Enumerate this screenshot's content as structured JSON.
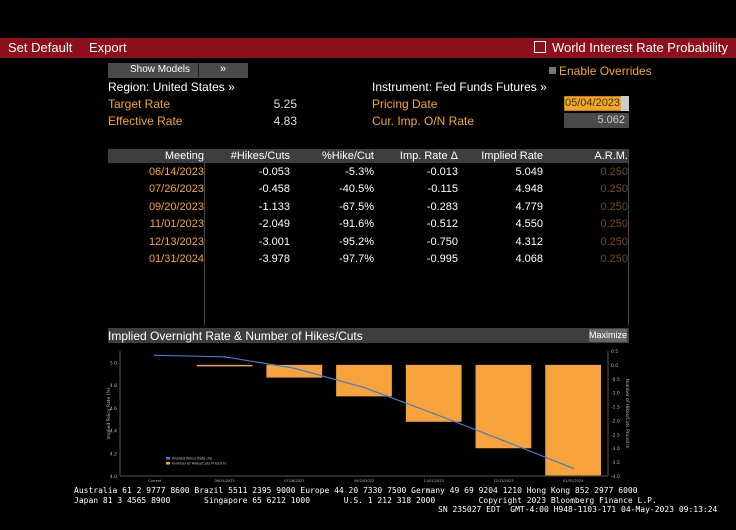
{
  "toolbar": {
    "set_default": "Set Default",
    "export": "Export",
    "title": "World Interest Rate Probability"
  },
  "controls": {
    "show_models": "Show Models",
    "show_models_arrow": "»",
    "enable_overrides": "Enable Overrides",
    "region": "Region: United States »",
    "instrument": "Instrument: Fed Funds Futures »",
    "target_rate_label": "Target Rate",
    "target_rate_value": "5.25",
    "effective_rate_label": "Effective Rate",
    "effective_rate_value": "4.83",
    "pricing_date_label": "Pricing Date",
    "pricing_date_value": "05/04/2023",
    "cur_imp_label": "Cur. Imp. O/N Rate",
    "cur_imp_value": "5.062"
  },
  "table": {
    "headers": [
      "Meeting",
      "#Hikes/Cuts",
      "%Hike/Cut",
      "Imp. Rate Δ",
      "Implied Rate",
      "A.R.M."
    ],
    "rows": [
      [
        "06/14/2023",
        "-0.053",
        "-5.3%",
        "-0.013",
        "5.049",
        "0.250"
      ],
      [
        "07/26/2023",
        "-0.458",
        "-40.5%",
        "-0.115",
        "4.948",
        "0.250"
      ],
      [
        "09/20/2023",
        "-1.133",
        "-67.5%",
        "-0.283",
        "4.779",
        "0.250"
      ],
      [
        "11/01/2023",
        "-2.049",
        "-91.6%",
        "-0.512",
        "4.550",
        "0.250"
      ],
      [
        "12/13/2023",
        "-3.001",
        "-95.2%",
        "-0.750",
        "4.312",
        "0.250"
      ],
      [
        "01/31/2024",
        "-3.978",
        "-97.7%",
        "-0.995",
        "4.068",
        "0.250"
      ]
    ]
  },
  "chart_header": {
    "title": "Implied Overnight Rate & Number of Hikes/Cuts",
    "maximize": "Maximize"
  },
  "chart_data": {
    "type": "bar",
    "title": "Implied Overnight Rate & Number of Hikes/Cuts",
    "categories": [
      "Current",
      "06/14/2023",
      "07/26/2023",
      "09/20/2023",
      "11/01/2023",
      "12/13/2023",
      "01/31/2024"
    ],
    "series": [
      {
        "name": "Implied Policy Rate (%)",
        "type": "line",
        "axis": "left",
        "values": [
          5.062,
          5.049,
          4.948,
          4.779,
          4.55,
          4.312,
          4.068
        ]
      },
      {
        "name": "Number of Hikes/Cuts Priced In",
        "type": "bar",
        "axis": "right",
        "values": [
          0,
          -0.053,
          -0.458,
          -1.133,
          -2.049,
          -3.001,
          -3.978
        ]
      }
    ],
    "ylabel": "Implied Policy Rate (%)",
    "y2label": "Number of Hikes/Cuts Priced In",
    "ylim": [
      4.0,
      5.1
    ],
    "y2lim": [
      -4.0,
      0.5
    ],
    "yticks": [
      "4.0",
      "4.2",
      "4.4",
      "4.6",
      "4.8",
      "5.0"
    ],
    "y2ticks": [
      "0.5",
      "0.0",
      "-0.5",
      "-1.0",
      "-1.5",
      "-2.0",
      "-2.5",
      "-3.0",
      "-3.5",
      "-4.0"
    ],
    "colors": {
      "line": "#3a7fd5",
      "bar": "#f7a23a"
    }
  },
  "footer": {
    "line1": "Australia 61 2 9777 8600 Brazil 5511 2395 9000 Europe 44 20 7330 7500 Germany 49 69 9204 1210 Hong Kong 852 2977 6000",
    "line2": "Japan 81 3 4565 8900       Singapore 65 6212 1000       U.S. 1 212 318 2000         Copyright 2023 Bloomberg Finance L.P.",
    "line3": "SN 235027 EDT  GMT-4:00 H948-1103-171 04-May-2023 09:13:24"
  }
}
